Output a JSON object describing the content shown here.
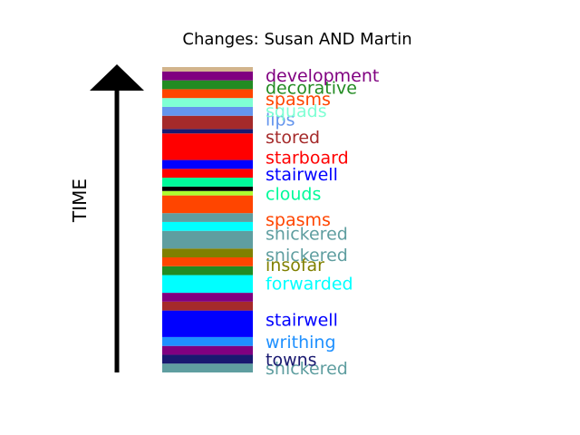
{
  "chart_data": {
    "type": "bar",
    "orientation": "stacked-vertical",
    "title": "Changes: Susan AND Martin",
    "ylabel": "TIME",
    "y_direction": "up",
    "segments": [
      {
        "color": "#5F9EA0",
        "value": 1
      },
      {
        "color": "#191970",
        "value": 1
      },
      {
        "color": "#800080",
        "value": 1
      },
      {
        "color": "#1E90FF",
        "value": 1
      },
      {
        "color": "#0000FF",
        "value": 3
      },
      {
        "color": "#A52A2A",
        "value": 1
      },
      {
        "color": "#800080",
        "value": 1
      },
      {
        "color": "#00FFFF",
        "value": 2
      },
      {
        "color": "#228B22",
        "value": 1
      },
      {
        "color": "#FF4500",
        "value": 1
      },
      {
        "color": "#808000",
        "value": 1
      },
      {
        "color": "#5F9EA0",
        "value": 2
      },
      {
        "color": "#00FFFF",
        "value": 1
      },
      {
        "color": "#5F9EA0",
        "value": 1
      },
      {
        "color": "#FF4500",
        "value": 2
      },
      {
        "color": "#ADFF2F",
        "value": 0.5
      },
      {
        "color": "#000000",
        "value": 0.5
      },
      {
        "color": "#00FA9A",
        "value": 1
      },
      {
        "color": "#FF0000",
        "value": 1
      },
      {
        "color": "#0000FF",
        "value": 1
      },
      {
        "color": "#FF0000",
        "value": 3
      },
      {
        "color": "#191970",
        "value": 0.5
      },
      {
        "color": "#A52A2A",
        "value": 1.5
      },
      {
        "color": "#6495ED",
        "value": 1
      },
      {
        "color": "#7FFFD4",
        "value": 1
      },
      {
        "color": "#FF4500",
        "value": 1
      },
      {
        "color": "#228B22",
        "value": 1
      },
      {
        "color": "#800080",
        "value": 1
      },
      {
        "color": "#D2B48C",
        "value": 0.5
      }
    ],
    "labels": [
      {
        "text": "shickered",
        "color": "#5F9EA0",
        "position": 0.5
      },
      {
        "text": "towns",
        "color": "#191970",
        "position": 1.5
      },
      {
        "text": "writhing",
        "color": "#1E90FF",
        "position": 3.5
      },
      {
        "text": "stairwell",
        "color": "#0000FF",
        "position": 6.0
      },
      {
        "text": "forwarded",
        "color": "#00FFFF",
        "position": 10.1
      },
      {
        "text": "insofar",
        "color": "#808000",
        "position": 12.2
      },
      {
        "text": "snickered",
        "color": "#5F9EA0",
        "position": 13.3
      },
      {
        "text": "shickered",
        "color": "#5F9EA0",
        "position": 15.7
      },
      {
        "text": "spasms",
        "color": "#FF4500",
        "position": 17.3
      },
      {
        "text": "clouds",
        "color": "#00FA9A",
        "position": 20.2
      },
      {
        "text": "stairwell",
        "color": "#0000FF",
        "position": 22.4
      },
      {
        "text": "starboard",
        "color": "#FF0000",
        "position": 24.3
      },
      {
        "text": "stored",
        "color": "#A52A2A",
        "position": 26.6
      },
      {
        "text": "lips",
        "color": "#6495ED",
        "position": 28.6
      },
      {
        "text": "squads",
        "color": "#7FFFD4",
        "position": 29.6
      },
      {
        "text": "spasms",
        "color": "#FF4500",
        "position": 30.9
      },
      {
        "text": "decorative",
        "color": "#228B22",
        "position": 32.2
      },
      {
        "text": "development",
        "color": "#800080",
        "position": 33.6
      }
    ]
  }
}
